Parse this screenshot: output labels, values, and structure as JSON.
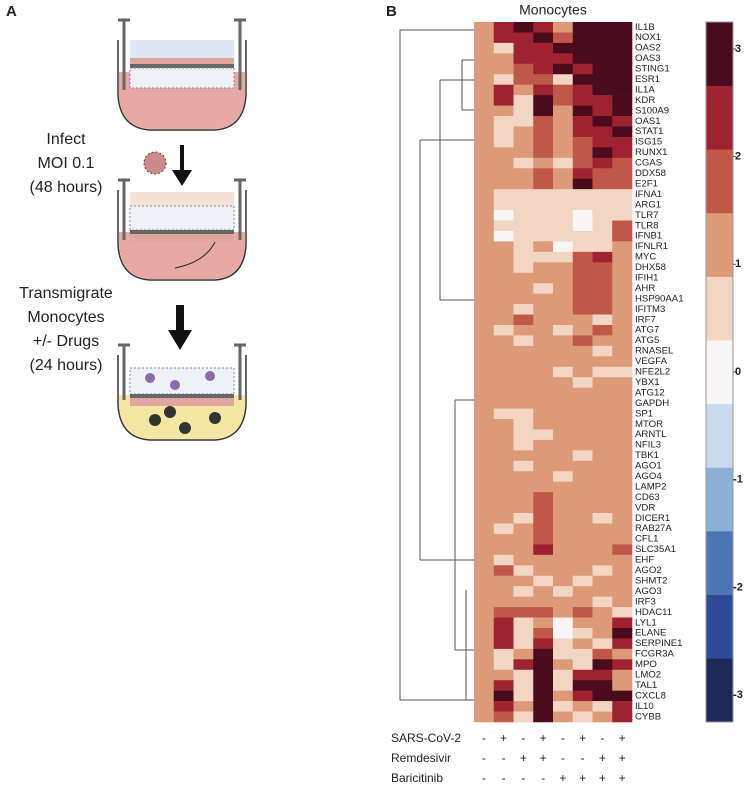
{
  "panel_a": {
    "label": "A",
    "infect": [
      "Infect",
      "MOI 0.1",
      "(48 hours)"
    ],
    "transmigrate": [
      "Transmigrate",
      "Monocytes",
      "+/- Drugs",
      "(24 hours)"
    ]
  },
  "chart_data": {
    "type": "heatmap",
    "panel_label": "B",
    "title": "Monocytes",
    "rows": [
      "IL1B",
      "NOX1",
      "OAS2",
      "OAS3",
      "STING1",
      "ESR1",
      "IL1A",
      "KDR",
      "S100A9",
      "OAS1",
      "STAT1",
      "ISG15",
      "RUNX1",
      "CGAS",
      "DDX58",
      "E2F1",
      "IFNA1",
      "ARG1",
      "TLR7",
      "TLR8",
      "IFNB1",
      "IFNLR1",
      "MYC",
      "DHX58",
      "IFIH1",
      "AHR",
      "HSP90AA1",
      "IFITM3",
      "IRF7",
      "ATG7",
      "ATG5",
      "RNASEL",
      "VEGFA",
      "NFE2L2",
      "YBX1",
      "ATG12",
      "GAPDH",
      "SP1",
      "MTOR",
      "ARNTL",
      "NFIL3",
      "TBK1",
      "AGO1",
      "AGO4",
      "LAMP2",
      "CD63",
      "VDR",
      "DICER1",
      "RAB27A",
      "CFL1",
      "SLC35A1",
      "EHF",
      "AGO2",
      "SHMT2",
      "AGO3",
      "IRF3",
      "HDAC11",
      "LYL1",
      "ELANE",
      "SERPINE1",
      "FCGR3A",
      "MPO",
      "LMO2",
      "TAL1",
      "CXCL8",
      "IL10",
      "CYBB"
    ],
    "values": [
      [
        1,
        2.3,
        3,
        2.3,
        1,
        3,
        3,
        3
      ],
      [
        1,
        2.3,
        2.3,
        3,
        1.6,
        3,
        3,
        3
      ],
      [
        1,
        0.5,
        2.3,
        2.3,
        3,
        3,
        3,
        3
      ],
      [
        1,
        1,
        2.3,
        2.3,
        2.3,
        3,
        3,
        3
      ],
      [
        1,
        1,
        1.6,
        2.3,
        3,
        2.3,
        3,
        3
      ],
      [
        1,
        0.5,
        1.6,
        1.6,
        0.5,
        3,
        3,
        3
      ],
      [
        1,
        2.3,
        1,
        2.3,
        1.6,
        2.3,
        3,
        3
      ],
      [
        1,
        2.3,
        0.5,
        3,
        1.6,
        2.3,
        2.3,
        3
      ],
      [
        1,
        1,
        0.5,
        3,
        1,
        3,
        2.3,
        3
      ],
      [
        1,
        0.5,
        0.5,
        1.6,
        1,
        2.3,
        3,
        2.3
      ],
      [
        1,
        0.5,
        1,
        1.6,
        1,
        2.3,
        2.3,
        3
      ],
      [
        1,
        0.5,
        1,
        1.6,
        1,
        1.6,
        2.3,
        2.3
      ],
      [
        1,
        1,
        1,
        1.6,
        1,
        1.6,
        3,
        2.3
      ],
      [
        1,
        1,
        0.5,
        1,
        0.5,
        1.6,
        2.3,
        1.6
      ],
      [
        1,
        1,
        1,
        1.6,
        1,
        2.3,
        1.6,
        1.6
      ],
      [
        1,
        1,
        1,
        1.6,
        1,
        3,
        1.6,
        1.6
      ],
      [
        1,
        0.5,
        0.5,
        0.5,
        0.5,
        0.5,
        0.5,
        0.5
      ],
      [
        1,
        0.5,
        0.5,
        0.5,
        0.5,
        0.5,
        0.5,
        0.5
      ],
      [
        1,
        0,
        0.5,
        0.5,
        0.5,
        0,
        0.5,
        0.5
      ],
      [
        1,
        0.5,
        0.5,
        0.5,
        0.5,
        0,
        0.5,
        1.6
      ],
      [
        1,
        0,
        0.5,
        0.5,
        0.5,
        0.5,
        0.5,
        1.6
      ],
      [
        1,
        1,
        0.5,
        1,
        0,
        0.5,
        0.5,
        1
      ],
      [
        1,
        1,
        0.5,
        0.5,
        0.5,
        1.6,
        2.3,
        1
      ],
      [
        1,
        1,
        0.5,
        1,
        1,
        1.6,
        1.6,
        1
      ],
      [
        1,
        1,
        1,
        1,
        1,
        1.6,
        1.6,
        1
      ],
      [
        1,
        1,
        1,
        0.5,
        1,
        1.6,
        1.6,
        1
      ],
      [
        1,
        1,
        1,
        1,
        1,
        1.6,
        1.6,
        1
      ],
      [
        1,
        1,
        0.5,
        1,
        1,
        1.6,
        1.6,
        1
      ],
      [
        1,
        1,
        1.6,
        1,
        1,
        1,
        0.5,
        1
      ],
      [
        1,
        0.5,
        1,
        1,
        0.5,
        1,
        1.6,
        1
      ],
      [
        1,
        1,
        0.5,
        1,
        1,
        1.6,
        1,
        1
      ],
      [
        1,
        1,
        1,
        1,
        1,
        1,
        0.5,
        1
      ],
      [
        1,
        1,
        1,
        1,
        1,
        1,
        1,
        1
      ],
      [
        1,
        1,
        1,
        1,
        0.5,
        1,
        0.5,
        0.5
      ],
      [
        1,
        1,
        1,
        1,
        1,
        0.5,
        1,
        1
      ],
      [
        1,
        1,
        1,
        1,
        1,
        1,
        1,
        1
      ],
      [
        1,
        1,
        1,
        1,
        1,
        1,
        1,
        1
      ],
      [
        1,
        0.5,
        0.5,
        1,
        1,
        1,
        1,
        1
      ],
      [
        1,
        1,
        0.5,
        1,
        1,
        1,
        1,
        1
      ],
      [
        1,
        1,
        0.5,
        0.5,
        1,
        1,
        1,
        1
      ],
      [
        1,
        1,
        0.5,
        1,
        1,
        1,
        1,
        1
      ],
      [
        1,
        1,
        1,
        1,
        1,
        0.5,
        1,
        1
      ],
      [
        1,
        1,
        0.5,
        1,
        1,
        1,
        1,
        1
      ],
      [
        1,
        1,
        1,
        1,
        0.5,
        1,
        1,
        1
      ],
      [
        1,
        1,
        1,
        1,
        1,
        1,
        1,
        1
      ],
      [
        1,
        1,
        1,
        1.6,
        1,
        1,
        1,
        1
      ],
      [
        1,
        1,
        1,
        1.6,
        1,
        1,
        1,
        1
      ],
      [
        1,
        1,
        0.5,
        1.6,
        1,
        1,
        0.5,
        1
      ],
      [
        1,
        0.5,
        1,
        1.6,
        1,
        1,
        1,
        1
      ],
      [
        1,
        1,
        1,
        1.6,
        1,
        1,
        1,
        1
      ],
      [
        1,
        1,
        1,
        2.3,
        1,
        1,
        1,
        1.6
      ],
      [
        1,
        0.5,
        1,
        1,
        1,
        1,
        1,
        1
      ],
      [
        1,
        1.6,
        0.5,
        1,
        1,
        1,
        0.5,
        1
      ],
      [
        1,
        1,
        1,
        0.5,
        1,
        0.5,
        1,
        1
      ],
      [
        1,
        1,
        0.5,
        1,
        0.5,
        1,
        1,
        1
      ],
      [
        1,
        1,
        1,
        1,
        1,
        1,
        0.5,
        1
      ],
      [
        1,
        1.6,
        1.6,
        1.6,
        1,
        1.6,
        1,
        0.5
      ],
      [
        1,
        2.3,
        0.5,
        1,
        0,
        1,
        1,
        2.3
      ],
      [
        1,
        2.3,
        0.5,
        1.6,
        0,
        0.5,
        1,
        3
      ],
      [
        1,
        2.3,
        0.5,
        2.3,
        0.5,
        1,
        0.5,
        2.3
      ],
      [
        1,
        0.5,
        1,
        3,
        0.5,
        0.5,
        1.6,
        1
      ],
      [
        1,
        0.5,
        2.3,
        3,
        1,
        0.5,
        3,
        2.3
      ],
      [
        1,
        1,
        0.5,
        3,
        0.5,
        2.3,
        2.3,
        1
      ],
      [
        1,
        2.3,
        0.5,
        3,
        0.5,
        3,
        3,
        1
      ],
      [
        1,
        3,
        0.5,
        3,
        1,
        2.3,
        3,
        3
      ],
      [
        1,
        2.3,
        1,
        3,
        0.5,
        1,
        0.5,
        2.3
      ],
      [
        1,
        1.6,
        0.5,
        3,
        1,
        0.5,
        1,
        2.3
      ]
    ],
    "conditions": [
      {
        "name": "SARS-CoV-2",
        "values": [
          "-",
          "+",
          "-",
          "+",
          "-",
          "+",
          "-",
          "+"
        ]
      },
      {
        "name": "Remdesivir",
        "values": [
          "-",
          "-",
          "+",
          "+",
          "-",
          "-",
          "+",
          "+"
        ]
      },
      {
        "name": "Baricitinib",
        "values": [
          "-",
          "-",
          "-",
          "-",
          "+",
          "+",
          "+",
          "+"
        ]
      }
    ],
    "zlim": [
      -3.25,
      3.25
    ],
    "zticks": [
      3,
      2,
      1,
      0,
      -1,
      -2,
      -3
    ],
    "colors": [
      "#1c2a55",
      "#2d4a98",
      "#4e74b6",
      "#8cb0d6",
      "#c8dbee",
      "#f7f5f5",
      "#f2d5c3",
      "#dd9a79",
      "#c0584a",
      "#9e2230",
      "#4a0c1c"
    ]
  }
}
